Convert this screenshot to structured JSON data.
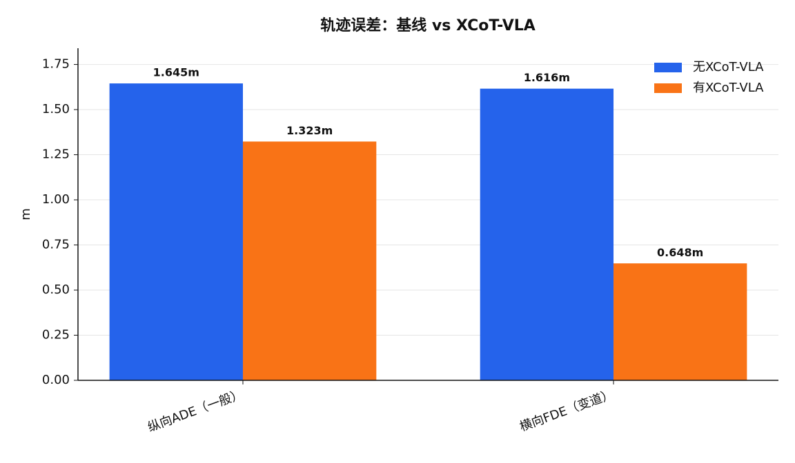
{
  "chart_data": {
    "type": "bar",
    "title": "轨迹误差：基线 vs XCoT-VLA",
    "y_label": "m",
    "categories": [
      "纵向ADE（一般）",
      "横向FDE（变道）"
    ],
    "series": [
      {
        "name": "无XCoT-VLA",
        "color": "#2563eb",
        "values": [
          1.645,
          1.616
        ],
        "value_labels": [
          "1.645m",
          "1.616m"
        ]
      },
      {
        "name": "有XCoT-VLA",
        "color": "#f97316",
        "values": [
          1.323,
          0.648
        ],
        "value_labels": [
          "1.323m",
          "0.648m"
        ]
      }
    ],
    "ylim": [
      0,
      1.84
    ],
    "yticks": [
      {
        "value": 0,
        "label": "0.00"
      },
      {
        "value": 0.25,
        "label": "0.25"
      },
      {
        "value": 0.5,
        "label": "0.50"
      },
      {
        "value": 0.75,
        "label": "0.75"
      },
      {
        "value": 1,
        "label": "1.00"
      },
      {
        "value": 1.25,
        "label": "1.25"
      },
      {
        "value": 1.5,
        "label": "1.50"
      },
      {
        "value": 1.75,
        "label": "1.75"
      }
    ],
    "grid": true,
    "legend": "upper right"
  }
}
